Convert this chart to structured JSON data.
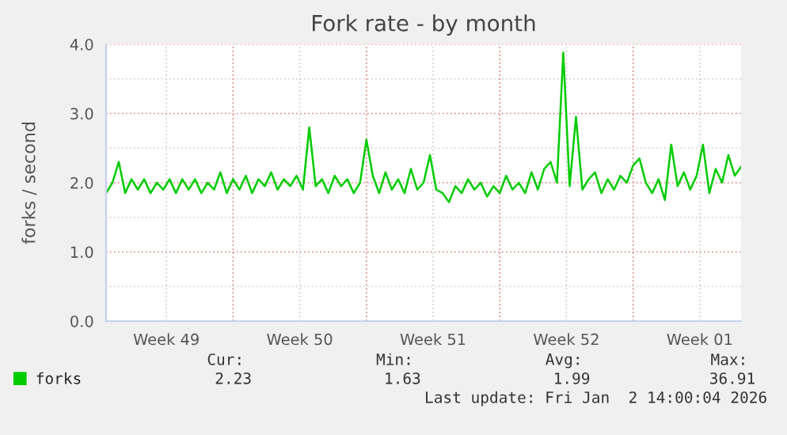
{
  "chart_data": {
    "type": "line",
    "title": "Fork rate - by month",
    "ylabel": "forks / second",
    "x": [
      "2025-12-01T08:00",
      "2025-12-01T16:00",
      "2025-12-02T00:00",
      "2025-12-02T08:00",
      "2025-12-02T16:00",
      "2025-12-03T00:00",
      "2025-12-03T08:00",
      "2025-12-03T16:00",
      "2025-12-04T00:00",
      "2025-12-04T08:00",
      "2025-12-04T16:00",
      "2025-12-05T00:00",
      "2025-12-05T08:00",
      "2025-12-05T16:00",
      "2025-12-06T00:00",
      "2025-12-06T08:00",
      "2025-12-06T16:00",
      "2025-12-07T00:00",
      "2025-12-07T08:00",
      "2025-12-07T16:00",
      "2025-12-08T00:00",
      "2025-12-08T08:00",
      "2025-12-08T16:00",
      "2025-12-09T00:00",
      "2025-12-09T08:00",
      "2025-12-09T16:00",
      "2025-12-10T00:00",
      "2025-12-10T08:00",
      "2025-12-10T16:00",
      "2025-12-11T00:00",
      "2025-12-11T08:00",
      "2025-12-11T16:00",
      "2025-12-12T00:00",
      "2025-12-12T08:00",
      "2025-12-12T16:00",
      "2025-12-13T00:00",
      "2025-12-13T08:00",
      "2025-12-13T16:00",
      "2025-12-14T00:00",
      "2025-12-14T08:00",
      "2025-12-14T16:00",
      "2025-12-15T00:00",
      "2025-12-15T08:00",
      "2025-12-15T16:00",
      "2025-12-16T00:00",
      "2025-12-16T08:00",
      "2025-12-16T16:00",
      "2025-12-17T00:00",
      "2025-12-17T08:00",
      "2025-12-17T16:00",
      "2025-12-18T00:00",
      "2025-12-18T08:00",
      "2025-12-18T16:00",
      "2025-12-19T00:00",
      "2025-12-19T08:00",
      "2025-12-19T16:00",
      "2025-12-20T00:00",
      "2025-12-20T08:00",
      "2025-12-20T16:00",
      "2025-12-21T00:00",
      "2025-12-21T08:00",
      "2025-12-21T16:00",
      "2025-12-22T00:00",
      "2025-12-22T08:00",
      "2025-12-22T16:00",
      "2025-12-23T00:00",
      "2025-12-23T08:00",
      "2025-12-23T16:00",
      "2025-12-24T00:00",
      "2025-12-24T08:00",
      "2025-12-24T16:00",
      "2025-12-25T00:00",
      "2025-12-25T08:00",
      "2025-12-25T16:00",
      "2025-12-26T00:00",
      "2025-12-26T08:00",
      "2025-12-26T16:00",
      "2025-12-27T00:00",
      "2025-12-27T08:00",
      "2025-12-27T16:00",
      "2025-12-28T00:00",
      "2025-12-28T08:00",
      "2025-12-28T16:00",
      "2025-12-29T00:00",
      "2025-12-29T08:00",
      "2025-12-29T16:00",
      "2025-12-30T00:00",
      "2025-12-30T08:00",
      "2025-12-30T16:00",
      "2025-12-31T00:00",
      "2025-12-31T08:00",
      "2025-12-31T16:00",
      "2026-01-01T00:00",
      "2026-01-01T08:00",
      "2026-01-01T16:00",
      "2026-01-02T00:00",
      "2026-01-02T08:00",
      "2026-01-02T16:00",
      "2026-01-03T00:00",
      "2026-01-03T08:00",
      "2026-01-03T16:00"
    ],
    "series": [
      {
        "name": "forks",
        "color": "#00cc00",
        "values": [
          1.85,
          2.0,
          2.3,
          1.85,
          2.05,
          1.9,
          2.05,
          1.85,
          2.0,
          1.9,
          2.05,
          1.85,
          2.05,
          1.9,
          2.05,
          1.85,
          2.0,
          1.9,
          2.15,
          1.85,
          2.05,
          1.9,
          2.1,
          1.85,
          2.05,
          1.95,
          2.15,
          1.9,
          2.05,
          1.95,
          2.1,
          1.9,
          2.8,
          1.95,
          2.05,
          1.85,
          2.1,
          1.95,
          2.05,
          1.85,
          2.0,
          2.62,
          2.1,
          1.85,
          2.15,
          1.9,
          2.05,
          1.85,
          2.2,
          1.9,
          2.0,
          2.4,
          1.9,
          1.85,
          1.72,
          1.95,
          1.85,
          2.05,
          1.9,
          2.0,
          1.8,
          1.95,
          1.85,
          2.1,
          1.9,
          2.0,
          1.85,
          2.15,
          1.9,
          2.2,
          2.3,
          2.0,
          3.88,
          1.95,
          2.95,
          1.9,
          2.05,
          2.15,
          1.85,
          2.05,
          1.9,
          2.1,
          2.0,
          2.25,
          2.35,
          2.0,
          1.85,
          2.05,
          1.75,
          2.55,
          1.95,
          2.15,
          1.9,
          2.1,
          2.55,
          1.85,
          2.2,
          2.0,
          2.4,
          2.1,
          2.23
        ]
      }
    ],
    "xlim": [
      "2025-12-01T08:00",
      "2026-01-03T16:00"
    ],
    "xticks": [
      {
        "value": "2025-12-04T12:00",
        "label": "Week 49"
      },
      {
        "value": "2025-12-08T00:00",
        "label": null
      },
      {
        "value": "2025-12-11T12:00",
        "label": "Week 50"
      },
      {
        "value": "2025-12-15T00:00",
        "label": null
      },
      {
        "value": "2025-12-18T12:00",
        "label": "Week 51"
      },
      {
        "value": "2025-12-22T00:00",
        "label": null
      },
      {
        "value": "2025-12-25T12:00",
        "label": "Week 52"
      },
      {
        "value": "2025-12-29T00:00",
        "label": null
      },
      {
        "value": "2026-01-01T12:00",
        "label": "Week 01"
      }
    ],
    "ylim": [
      0,
      4
    ],
    "yticks": [
      {
        "value": 0,
        "label": "0.0"
      },
      {
        "value": 0.5,
        "label": null
      },
      {
        "value": 1,
        "label": "1.0"
      },
      {
        "value": 1.5,
        "label": null
      },
      {
        "value": 2,
        "label": "2.0"
      },
      {
        "value": 2.5,
        "label": null
      },
      {
        "value": 3,
        "label": "3.0"
      },
      {
        "value": 3.5,
        "label": null
      },
      {
        "value": 4,
        "label": "4.0"
      }
    ],
    "grid": true,
    "legend": "bottom left",
    "annotations": [
      "Cur:",
      "Min:",
      "Avg:",
      "Max:",
      "2.23",
      "1.63",
      "1.99",
      "36.91",
      "Last update: Fri Jan  2 14:00:04 2026"
    ]
  }
}
